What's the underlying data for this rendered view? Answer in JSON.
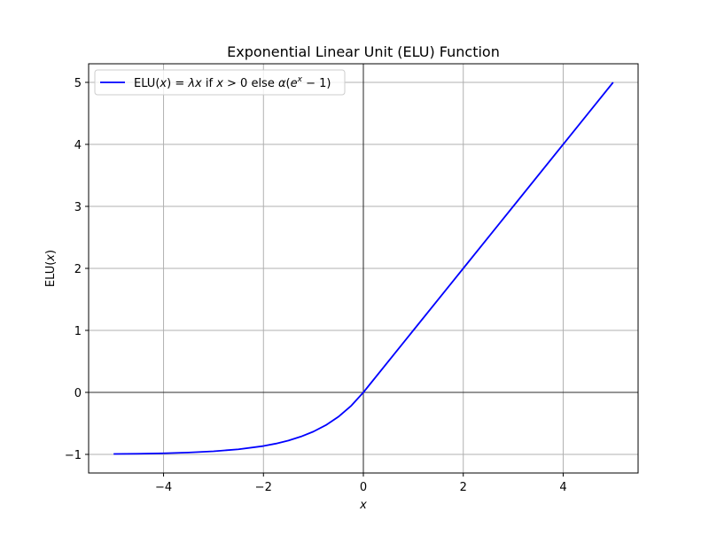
{
  "chart_data": {
    "type": "line",
    "title": "Exponential Linear Unit (ELU) Function",
    "xlabel_main": "x",
    "ylabel_main": "ELU(",
    "ylabel_var": "x",
    "ylabel_close": ")",
    "xlim": [
      -5.5,
      5.5
    ],
    "ylim": [
      -1.3,
      5.3
    ],
    "x_ticks": [
      -4,
      -2,
      0,
      2,
      4
    ],
    "x_tick_labels": [
      "−4",
      "−2",
      "0",
      "2",
      "4"
    ],
    "y_ticks": [
      -1,
      0,
      1,
      2,
      3,
      4,
      5
    ],
    "y_tick_labels": [
      "−1",
      "0",
      "1",
      "2",
      "3",
      "4",
      "5"
    ],
    "grid": true,
    "reference_lines": {
      "x": 0,
      "y": 0
    },
    "legend_placement": "top-left",
    "series": [
      {
        "name": "ELU(x) = λx if x > 0 else α(e^x − 1)",
        "color": "#0000ff",
        "x": [
          -5,
          -4.5,
          -4,
          -3.5,
          -3,
          -2.5,
          -2,
          -1.75,
          -1.5,
          -1.25,
          -1,
          -0.75,
          -0.5,
          -0.25,
          0,
          1,
          2,
          3,
          4,
          5
        ],
        "y": [
          -0.993,
          -0.989,
          -0.982,
          -0.97,
          -0.95,
          -0.918,
          -0.865,
          -0.826,
          -0.777,
          -0.713,
          -0.632,
          -0.528,
          -0.393,
          -0.221,
          0,
          1,
          2,
          3,
          4,
          5
        ]
      }
    ],
    "legend": {
      "label_prefix": "ELU(",
      "label_x1": "x",
      "label_mid1": ") = ",
      "label_lambda": "λx",
      "label_mid2": " if ",
      "label_x2": "x",
      "label_mid3": " > 0 else ",
      "label_alpha": "α",
      "label_paren": "(",
      "label_e": "e",
      "label_exp": "x",
      "label_tail": " − 1)"
    }
  }
}
